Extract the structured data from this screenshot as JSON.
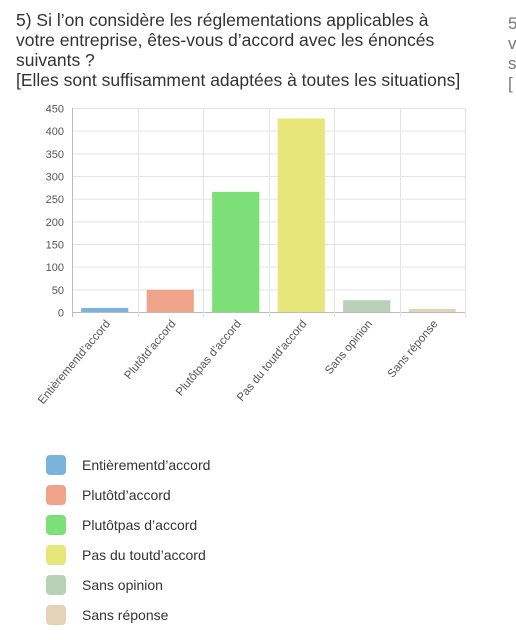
{
  "question": {
    "lines": [
      "5) Si l’on considère les réglementations applicables à",
      "votre entreprise, êtes-vous d’accord avec les énoncés",
      "suivants ?",
      "[Elles sont suffisamment adaptées à toutes les situations]"
    ]
  },
  "next_panel_fragment": [
    "5",
    "v",
    "s",
    "["
  ],
  "colors": {
    "axis": "#bbbbbb",
    "grid": "#e3e3e3",
    "text": "#333333",
    "tick_text": "#555555"
  },
  "chart_data": {
    "type": "bar",
    "title": "",
    "xlabel": "",
    "ylabel": "",
    "ylim": [
      0,
      450
    ],
    "yticks": [
      0,
      50,
      100,
      150,
      200,
      250,
      300,
      350,
      400,
      450
    ],
    "grid": true,
    "legend_placement": "bottom",
    "categories": [
      "Entièrementd’accord",
      "Plutôtd’accord",
      "Plutôtpas d’accord",
      "Pas du toutd’accord",
      "Sans opinion",
      "Sans réponse"
    ],
    "values": [
      9,
      49,
      265,
      427,
      26,
      7
    ],
    "colors": [
      "#7bb3df",
      "#efa48a",
      "#7ddf78",
      "#e6e67a",
      "#b9d1b6",
      "#e4d3b8"
    ]
  }
}
